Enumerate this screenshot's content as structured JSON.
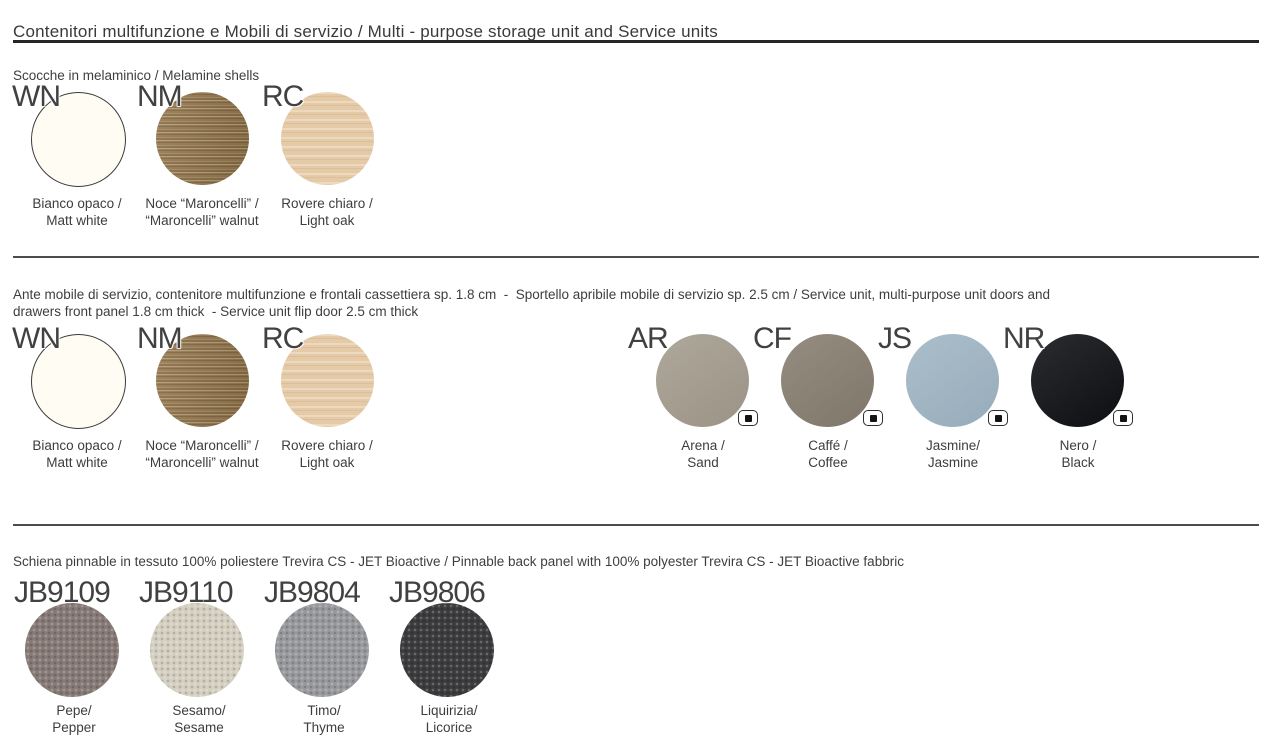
{
  "title": "Contenitori multifunzione e Mobili di servizio / Multi - purpose storage unit and Service units",
  "sections": {
    "shells": {
      "label": "Scocche in melaminico / Melamine shells",
      "swatches": [
        {
          "code": "WN",
          "name_it": "Bianco opaco /",
          "name_en": "Matt white",
          "color": "#fffdf3",
          "texture": "plain-outlined"
        },
        {
          "code": "NM",
          "name_it": "Noce “Maroncelli” /",
          "name_en": "“Maroncelli” walnut",
          "color": "#93774e",
          "texture": "wood"
        },
        {
          "code": "RC",
          "name_it": "Rovere chiaro /",
          "name_en": "Light oak",
          "color": "#e5caa8",
          "texture": "wood-light"
        }
      ]
    },
    "doors": {
      "label_line1": "Ante mobile di servizio, contenitore multifunzione e frontali cassettiera sp. 1.8 cm  -  Sportello apribile mobile di servizio sp. 2.5 cm / Service unit, multi-purpose unit doors and",
      "label_line2": "drawers front panel 1.8 cm thick  - Service unit flip door 2.5 cm thick",
      "melamine_swatches": [
        {
          "code": "WN",
          "name_it": "Bianco opaco /",
          "name_en": "Matt white",
          "color": "#fffdf3",
          "texture": "plain-outlined"
        },
        {
          "code": "NM",
          "name_it": "Noce “Maroncelli” /",
          "name_en": "“Maroncelli” walnut",
          "color": "#93774e",
          "texture": "wood"
        },
        {
          "code": "RC",
          "name_it": "Rovere chiaro /",
          "name_en": "Light oak",
          "color": "#e5caa8",
          "texture": "wood-light"
        }
      ],
      "finish_swatches": [
        {
          "code": "AR",
          "name_it": "Arena /",
          "name_en": "Sand",
          "color": "#a39b8d",
          "texture": "plain",
          "matt_icon": true
        },
        {
          "code": "CF",
          "name_it": "Caffé /",
          "name_en": "Coffee",
          "color": "#867d6f",
          "texture": "plain",
          "matt_icon": true
        },
        {
          "code": "JS",
          "name_it": "Jasmine/",
          "name_en": "Jasmine",
          "color": "#9fb5c4",
          "texture": "plain",
          "matt_icon": true
        },
        {
          "code": "NR",
          "name_it": "Nero /",
          "name_en": "Black",
          "color": "#0d0f13",
          "texture": "plain",
          "matt_icon": true
        }
      ]
    },
    "fabric": {
      "label": "Schiena pinnable in tessuto 100% poliestere Trevira CS - JET Bioactive / Pinnable back panel with 100% polyester Trevira CS - JET Bioactive fabbric",
      "swatches": [
        {
          "code": "JB9109",
          "name_it": "Pepe/",
          "name_en": "Pepper",
          "color": "#857a76",
          "texture": "fabric"
        },
        {
          "code": "JB9110",
          "name_it": "Sesamo/",
          "name_en": "Sesame",
          "color": "#d4cfc1",
          "texture": "fabric"
        },
        {
          "code": "JB9804",
          "name_it": "Timo/",
          "name_en": "Thyme",
          "color": "#98999c",
          "texture": "fabric"
        },
        {
          "code": "JB9806",
          "name_it": "Liquirizia/",
          "name_en": "Licorice",
          "color": "#3c3c3e",
          "texture": "fabric"
        }
      ]
    }
  }
}
